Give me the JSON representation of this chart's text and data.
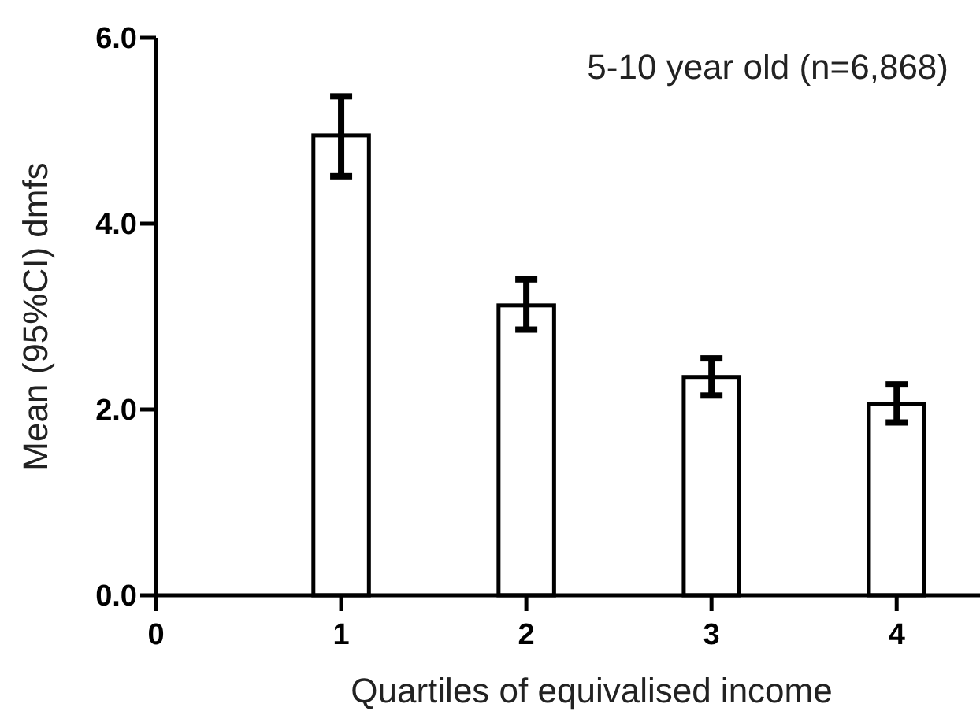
{
  "chart_data": {
    "type": "bar",
    "title": "5-10 year old (n=6,868)",
    "xlabel": "Quartiles of equivalised income",
    "ylabel": "Mean (95%CI) dmfs",
    "x": [
      1,
      2,
      3,
      4
    ],
    "values": [
      4.95,
      3.12,
      2.35,
      2.06
    ],
    "color": "#ffffff",
    "errors": [
      [
        4.51,
        5.37
      ],
      [
        2.86,
        3.4
      ],
      [
        2.15,
        2.55
      ],
      [
        1.86,
        2.27
      ]
    ],
    "xlim": [
      0,
      4.45
    ],
    "xticks": [
      0,
      1,
      2,
      3,
      4
    ],
    "ylim": [
      0,
      6
    ],
    "yticks": [
      {
        "value": 0,
        "label": "0.0"
      },
      {
        "value": 2,
        "label": "2.0"
      },
      {
        "value": 4,
        "label": "4.0"
      },
      {
        "value": 6,
        "label": "6.0"
      }
    ],
    "grid": false
  }
}
